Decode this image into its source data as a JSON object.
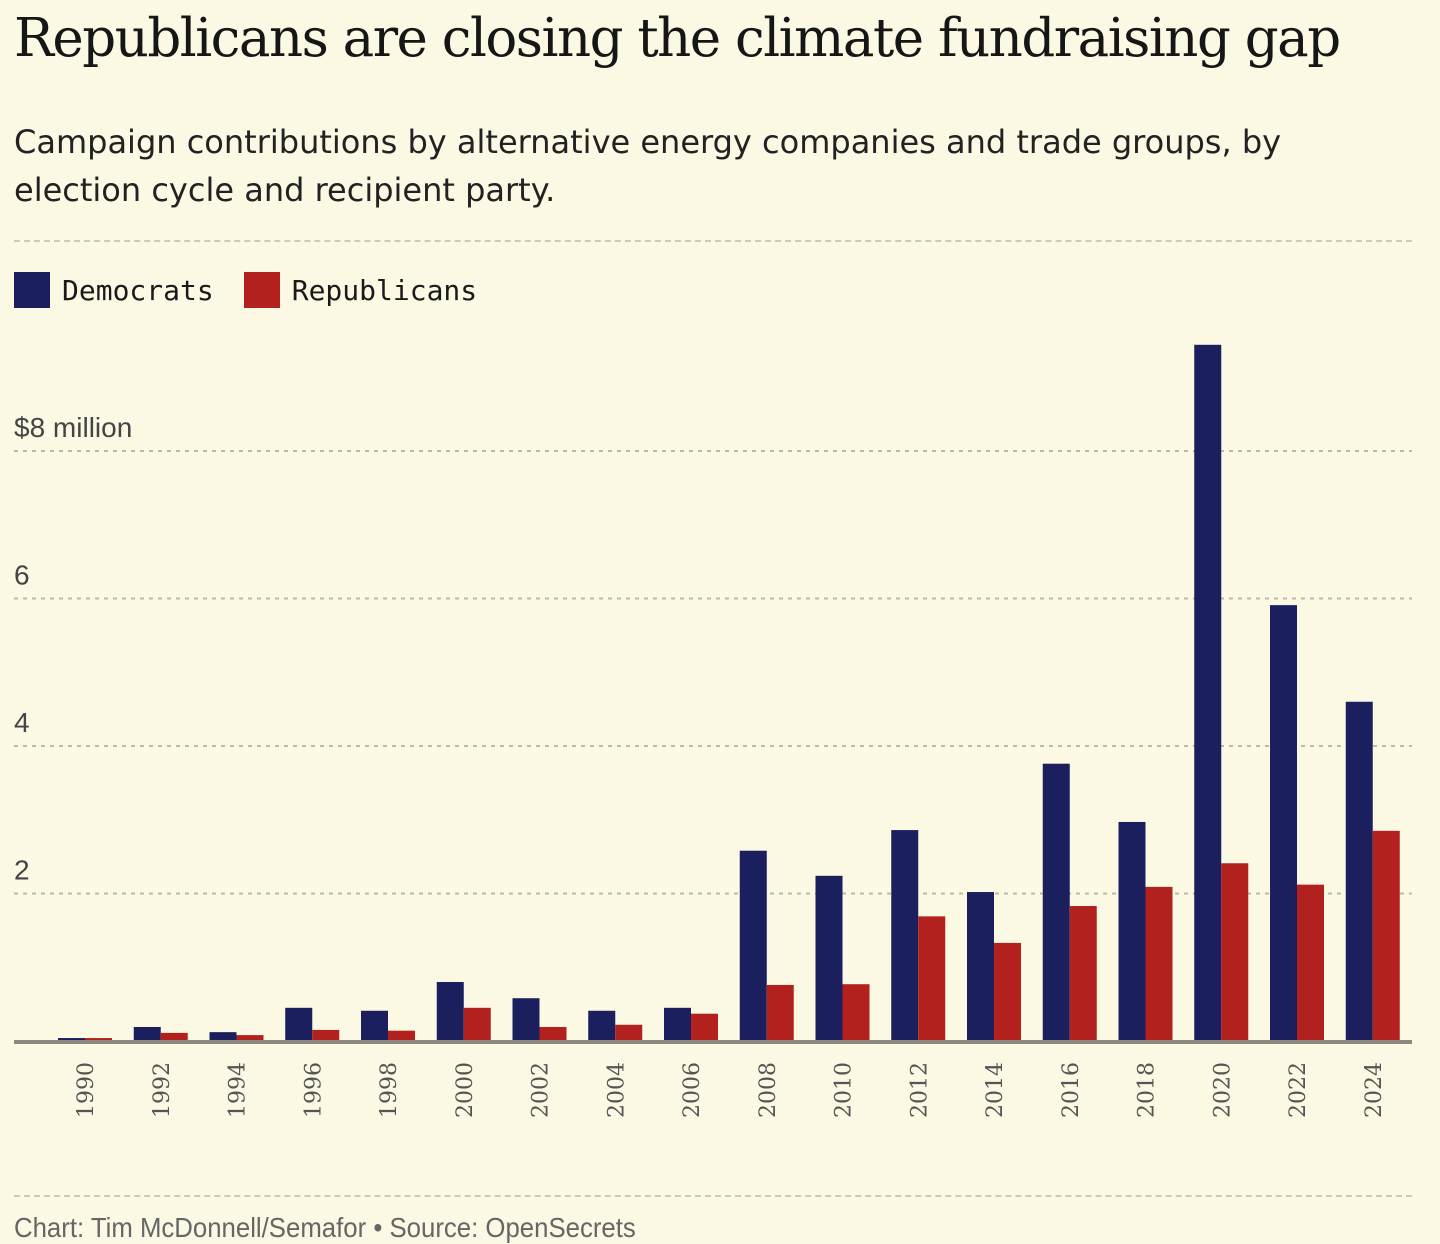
{
  "chart_data": {
    "type": "bar",
    "title": "Republicans are closing the climate fundraising gap",
    "subtitle": "Campaign contributions by alternative energy companies and trade groups, by election cycle and recipient party.",
    "categories": [
      "1990",
      "1992",
      "1994",
      "1996",
      "1998",
      "2000",
      "2002",
      "2004",
      "2006",
      "2008",
      "2010",
      "2012",
      "2014",
      "2016",
      "2018",
      "2020",
      "2022",
      "2024"
    ],
    "series": [
      {
        "name": "Democrats",
        "color": "#1b1f5e",
        "values": [
          0.04,
          0.19,
          0.12,
          0.45,
          0.41,
          0.8,
          0.58,
          0.41,
          0.45,
          2.58,
          2.24,
          2.86,
          2.02,
          3.76,
          2.97,
          9.44,
          5.91,
          4.6
        ]
      },
      {
        "name": "Republicans",
        "color": "#b3211e",
        "values": [
          0.04,
          0.11,
          0.08,
          0.15,
          0.14,
          0.45,
          0.19,
          0.22,
          0.37,
          0.76,
          0.77,
          1.69,
          1.33,
          1.83,
          2.09,
          2.41,
          2.12,
          2.85
        ]
      }
    ],
    "yticks": [
      {
        "value": 2,
        "label": "2"
      },
      {
        "value": 4,
        "label": "4"
      },
      {
        "value": 6,
        "label": "6"
      },
      {
        "value": 8,
        "label": "$8 million"
      }
    ],
    "ylim": [
      0,
      9.5
    ],
    "xlabel": "",
    "ylabel": "",
    "grid": true,
    "legend": "top-left",
    "footer": "Chart: Tim McDonnell/Semafor • Source: OpenSecrets"
  }
}
